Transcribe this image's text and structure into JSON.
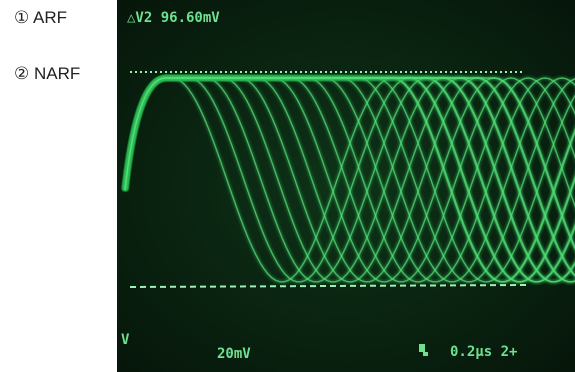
{
  "labels": [
    "① ARF",
    "② NARF"
  ],
  "screen": {
    "readout": "△V2 96.60mV",
    "channel": "V",
    "volts_div": "20mV",
    "time_div": "0.2µs 2+"
  }
}
